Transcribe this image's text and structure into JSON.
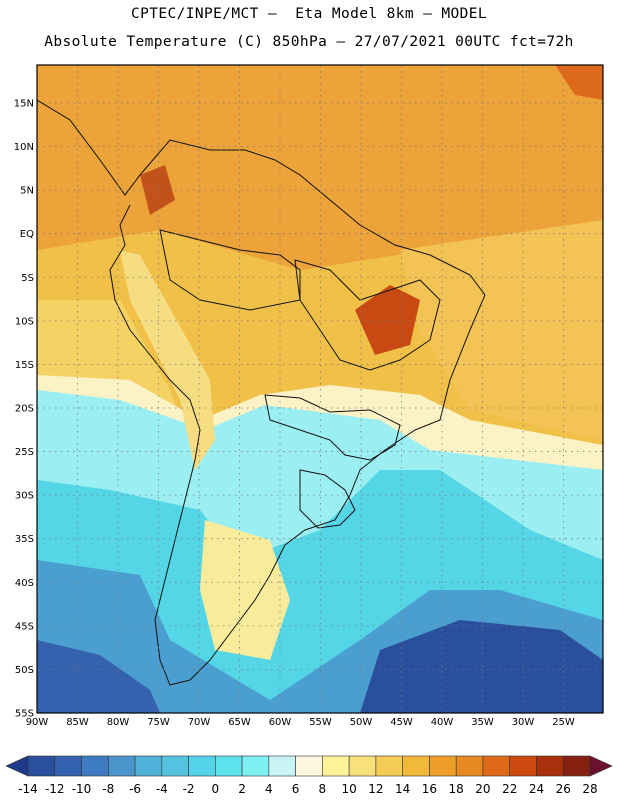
{
  "header": {
    "line1": "CPTEC/INPE/MCT —  Eta Model 8km — MODEL",
    "line2": "Absolute Temperature (C) 850hPa — 27/07/2021 00UTC fct=72h"
  },
  "map": {
    "lat_labels": [
      "15N",
      "10N",
      "5N",
      "EQ",
      "5S",
      "10S",
      "15S",
      "20S",
      "25S",
      "30S",
      "35S",
      "40S",
      "45S",
      "50S",
      "55S"
    ],
    "lon_labels": [
      "90W",
      "85W",
      "80W",
      "75W",
      "70W",
      "65W",
      "60W",
      "55W",
      "50W",
      "45W",
      "40W",
      "35W",
      "30W",
      "25W"
    ],
    "gridlines": "dotted"
  },
  "colorbar": {
    "tick_labels": [
      "-14",
      "-12",
      "-10",
      "-8",
      "-6",
      "-4",
      "-2",
      "0",
      "2",
      "4",
      "6",
      "8",
      "10",
      "12",
      "14",
      "16",
      "18",
      "20",
      "22",
      "24",
      "26",
      "28"
    ],
    "colors": [
      "#1f3a8a",
      "#2a4f9d",
      "#3562ae",
      "#3f7bc0",
      "#4b95cc",
      "#4fb0d8",
      "#53c3e0",
      "#55d3e8",
      "#5ee3ee",
      "#7ff0f2",
      "#c9f4f7",
      "#fdf6dc",
      "#fdf19a",
      "#f8e07a",
      "#f4cc55",
      "#f1b93a",
      "#ee9f2a",
      "#e88a22",
      "#de6a18",
      "#cc4a10",
      "#a8300c",
      "#852010",
      "#6b1030"
    ]
  }
}
